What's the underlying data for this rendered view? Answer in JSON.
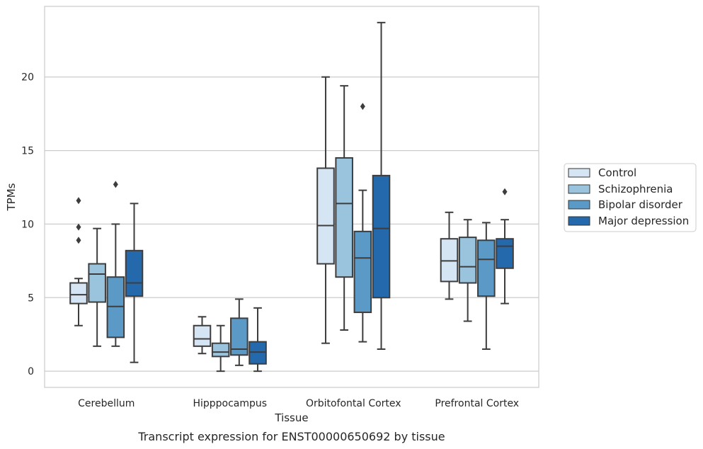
{
  "chart_data": {
    "type": "box",
    "caption": "Transcript expression for ENST00000650692 by tissue",
    "xlabel": "Tissue",
    "ylabel": "TPMs",
    "ylim": [
      -1.1,
      24.8
    ],
    "yticks": [
      0,
      5,
      10,
      15,
      20
    ],
    "grid": "horizontal",
    "legend_position": "right",
    "categories": [
      "Cerebellum",
      "Hipppocampus",
      "Orbitofontal Cortex",
      "Prefrontal Cortex"
    ],
    "series": [
      {
        "name": "Control",
        "color": "#d6e5f4",
        "boxes": [
          {
            "whislo": 3.1,
            "q1": 4.6,
            "med": 5.2,
            "q3": 6.0,
            "whishi": 6.3,
            "fliers": [
              8.9,
              9.8,
              11.6
            ]
          },
          {
            "whislo": 1.2,
            "q1": 1.7,
            "med": 2.2,
            "q3": 3.1,
            "whishi": 3.7,
            "fliers": []
          },
          {
            "whislo": 1.9,
            "q1": 7.3,
            "med": 9.9,
            "q3": 13.8,
            "whishi": 20.0,
            "fliers": []
          },
          {
            "whislo": 4.9,
            "q1": 6.1,
            "med": 7.5,
            "q3": 9.0,
            "whishi": 10.8,
            "fliers": []
          }
        ]
      },
      {
        "name": "Schizophrenia",
        "color": "#9ac4de",
        "boxes": [
          {
            "whislo": 1.7,
            "q1": 4.7,
            "med": 6.6,
            "q3": 7.3,
            "whishi": 9.7,
            "fliers": []
          },
          {
            "whislo": 0.0,
            "q1": 1.0,
            "med": 1.3,
            "q3": 1.9,
            "whishi": 3.1,
            "fliers": []
          },
          {
            "whislo": 2.8,
            "q1": 6.4,
            "med": 11.4,
            "q3": 14.5,
            "whishi": 19.4,
            "fliers": []
          },
          {
            "whislo": 3.4,
            "q1": 6.0,
            "med": 7.1,
            "q3": 9.1,
            "whishi": 10.3,
            "fliers": []
          }
        ]
      },
      {
        "name": "Bipolar disorder",
        "color": "#5b9ac7",
        "boxes": [
          {
            "whislo": 1.7,
            "q1": 2.3,
            "med": 4.4,
            "q3": 6.4,
            "whishi": 10.0,
            "fliers": [
              12.7
            ]
          },
          {
            "whislo": 0.4,
            "q1": 1.1,
            "med": 1.5,
            "q3": 3.6,
            "whishi": 4.9,
            "fliers": []
          },
          {
            "whislo": 2.0,
            "q1": 4.0,
            "med": 7.7,
            "q3": 9.5,
            "whishi": 12.3,
            "fliers": [
              18.0
            ]
          },
          {
            "whislo": 1.5,
            "q1": 5.1,
            "med": 7.6,
            "q3": 8.9,
            "whishi": 10.1,
            "fliers": []
          }
        ]
      },
      {
        "name": "Major depression",
        "color": "#2569ad",
        "boxes": [
          {
            "whislo": 0.6,
            "q1": 5.1,
            "med": 6.0,
            "q3": 8.2,
            "whishi": 11.4,
            "fliers": []
          },
          {
            "whislo": 0.0,
            "q1": 0.5,
            "med": 1.3,
            "q3": 2.0,
            "whishi": 4.3,
            "fliers": []
          },
          {
            "whislo": 1.5,
            "q1": 5.0,
            "med": 9.7,
            "q3": 13.3,
            "whishi": 23.7,
            "fliers": []
          },
          {
            "whislo": 4.6,
            "q1": 7.0,
            "med": 8.5,
            "q3": 9.0,
            "whishi": 10.3,
            "fliers": [
              12.2
            ]
          }
        ]
      }
    ]
  }
}
